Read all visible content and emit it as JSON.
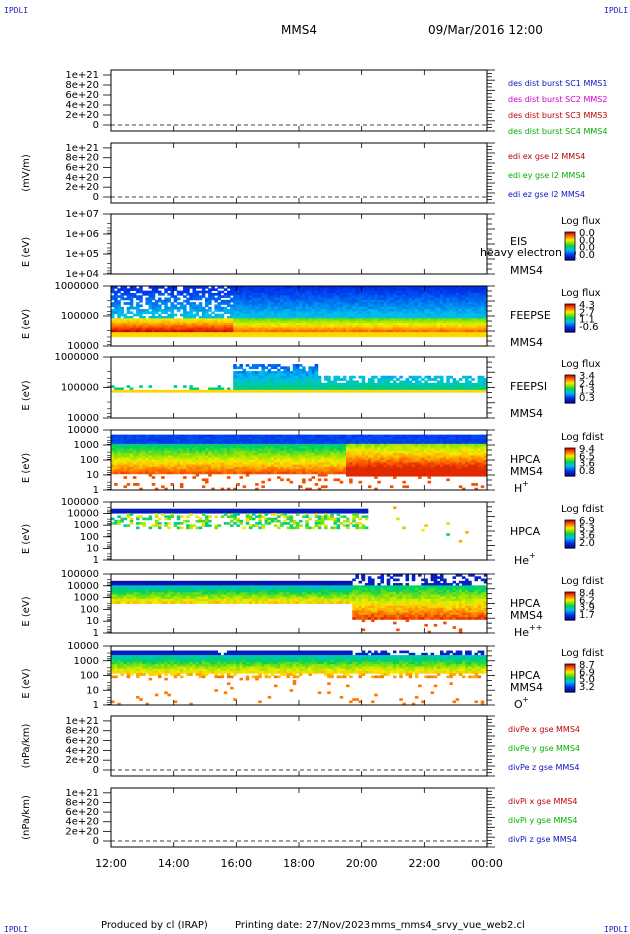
{
  "header": {
    "corner_label": "IPDLI",
    "spacecraft": "MMS4",
    "datetime": "09/Mar/2016 12:00"
  },
  "footer": {
    "produced_by": "Produced by cl (IRAP)",
    "printing_date": "Printing date: 27/Nov/2023",
    "script_name": "mms_mms4_srvy_vue_web2.cl"
  },
  "chart_data": [
    {
      "type": "line",
      "id": "p1",
      "ylabel": "",
      "yticks": [
        "1e+21",
        "8e+20",
        "6e+20",
        "4e+20",
        "2e+20",
        "0"
      ],
      "ylim": [
        0,
        1.1e+21
      ],
      "series": [
        {
          "name": "des dist burst SC1 MMS1",
          "color": "#1010c0"
        },
        {
          "name": "des dist burst SC2 MMS2",
          "color": "#d000d0"
        },
        {
          "name": "des dist burst SC3 MMS3",
          "color": "#c00000"
        },
        {
          "name": "des dist burst SC4 MMS4",
          "color": "#00b000"
        }
      ],
      "zero_line": "dashed"
    },
    {
      "type": "line",
      "id": "p2",
      "ylabel": "(mV/m)",
      "yticks": [
        "1e+21",
        "8e+20",
        "6e+20",
        "4e+20",
        "2e+20",
        "0"
      ],
      "ylim": [
        0,
        1.1e+21
      ],
      "series": [
        {
          "name": "edi ex gse l2 MMS4",
          "color": "#c00000"
        },
        {
          "name": "edi ey gse l2 MMS4",
          "color": "#00b000"
        },
        {
          "name": "edi ez gse l2 MMS4",
          "color": "#1010c0"
        }
      ],
      "zero_line": "dashed"
    },
    {
      "type": "heatmap",
      "id": "p3",
      "ylabel": "E (eV)",
      "log_y": true,
      "yticks": [
        "1e+07",
        "1e+06",
        "1e+05",
        "1e+04"
      ],
      "ylim": [
        10000,
        10000000
      ],
      "instrument": "EIS",
      "spacecraft": "MMS4",
      "overlay_label": "heavy electron to",
      "colorbar": {
        "title": "Log flux",
        "ticks": [
          "0.0",
          "0.0",
          "0.0",
          "0.0"
        ]
      },
      "pattern": "empty"
    },
    {
      "type": "heatmap",
      "id": "p4",
      "ylabel": "E (eV)",
      "log_y": true,
      "yticks": [
        "1000000",
        "100000",
        "10000"
      ],
      "ylim": [
        10000,
        1000000
      ],
      "instrument": "FEEPSE",
      "spacecraft": "MMS4",
      "colorbar": {
        "title": "Log flux",
        "ticks": [
          "4.3",
          "2.7",
          "1.1",
          "-0.6"
        ]
      },
      "pattern": "feepse"
    },
    {
      "type": "heatmap",
      "id": "p5",
      "ylabel": "E (eV)",
      "log_y": true,
      "yticks": [
        "1000000",
        "100000",
        "10000"
      ],
      "ylim": [
        10000,
        1000000
      ],
      "instrument": "FEEPSI",
      "spacecraft": "MMS4",
      "colorbar": {
        "title": "Log flux",
        "ticks": [
          "3.4",
          "2.4",
          "1.3",
          "0.3"
        ]
      },
      "pattern": "feepsi"
    },
    {
      "type": "heatmap",
      "id": "p6",
      "ylabel": "E (eV)",
      "log_y": true,
      "yticks": [
        "10000",
        "1000",
        "100",
        "10",
        "1"
      ],
      "ylim": [
        1,
        40000
      ],
      "instrument": "HPCA",
      "spacecraft": "MMS4",
      "species": "H",
      "charge": "+",
      "colorbar": {
        "title": "Log fdist",
        "ticks": [
          "9.4",
          "6.5",
          "3.6",
          "0.8"
        ]
      },
      "pattern": "hplus"
    },
    {
      "type": "heatmap",
      "id": "p7",
      "ylabel": "E (eV)",
      "log_y": true,
      "yticks": [
        "100000",
        "10000",
        "1000",
        "100",
        "10",
        "1"
      ],
      "ylim": [
        1,
        100000
      ],
      "instrument": "HPCA",
      "spacecraft": "",
      "species": "He",
      "charge": "+",
      "colorbar": {
        "title": "Log fdist",
        "ticks": [
          "6.9",
          "5.3",
          "3.6",
          "2.0"
        ]
      },
      "pattern": "heplus"
    },
    {
      "type": "heatmap",
      "id": "p8",
      "ylabel": "E (eV)",
      "log_y": true,
      "yticks": [
        "100000",
        "10000",
        "1000",
        "100",
        "10",
        "1"
      ],
      "ylim": [
        1,
        100000
      ],
      "instrument": "HPCA",
      "spacecraft": "MMS4",
      "species": "He",
      "charge": "++",
      "colorbar": {
        "title": "Log fdist",
        "ticks": [
          "8.4",
          "6.2",
          "3.9",
          "1.7"
        ]
      },
      "pattern": "heplusplus"
    },
    {
      "type": "heatmap",
      "id": "p9",
      "ylabel": "E (eV)",
      "log_y": true,
      "yticks": [
        "10000",
        "1000",
        "100",
        "10",
        "1"
      ],
      "ylim": [
        1,
        40000
      ],
      "instrument": "HPCA",
      "spacecraft": "MMS4",
      "species": "O",
      "charge": "+",
      "colorbar": {
        "title": "Log fdist",
        "ticks": [
          "8.7",
          "6.9",
          "5.0",
          "3.2"
        ]
      },
      "pattern": "oplus"
    },
    {
      "type": "line",
      "id": "p10",
      "ylabel": "(nPa/km)",
      "yticks": [
        "1e+21",
        "8e+20",
        "6e+20",
        "4e+20",
        "2e+20",
        "0"
      ],
      "ylim": [
        0,
        1.1e+21
      ],
      "series": [
        {
          "name": "divPe x gse MMS4",
          "color": "#c00000"
        },
        {
          "name": "divPe y gse MMS4",
          "color": "#00b000"
        },
        {
          "name": "divPe z gse MMS4",
          "color": "#1010c0"
        }
      ],
      "zero_line": "dashed"
    },
    {
      "type": "line",
      "id": "p11",
      "ylabel": "(nPa/km)",
      "yticks": [
        "1e+21",
        "8e+20",
        "6e+20",
        "4e+20",
        "2e+20",
        "0"
      ],
      "ylim": [
        0,
        1.1e+21
      ],
      "series": [
        {
          "name": "divPi x gse MMS4",
          "color": "#c00000"
        },
        {
          "name": "divPi y gse MMS4",
          "color": "#00b000"
        },
        {
          "name": "divPi z gse MMS4",
          "color": "#1010c0"
        }
      ],
      "zero_line": "dashed"
    }
  ],
  "time_axis": {
    "ticks": [
      "12:00",
      "14:00",
      "16:00",
      "18:00",
      "20:00",
      "22:00",
      "00:00"
    ],
    "range_hours": [
      12,
      24
    ]
  }
}
